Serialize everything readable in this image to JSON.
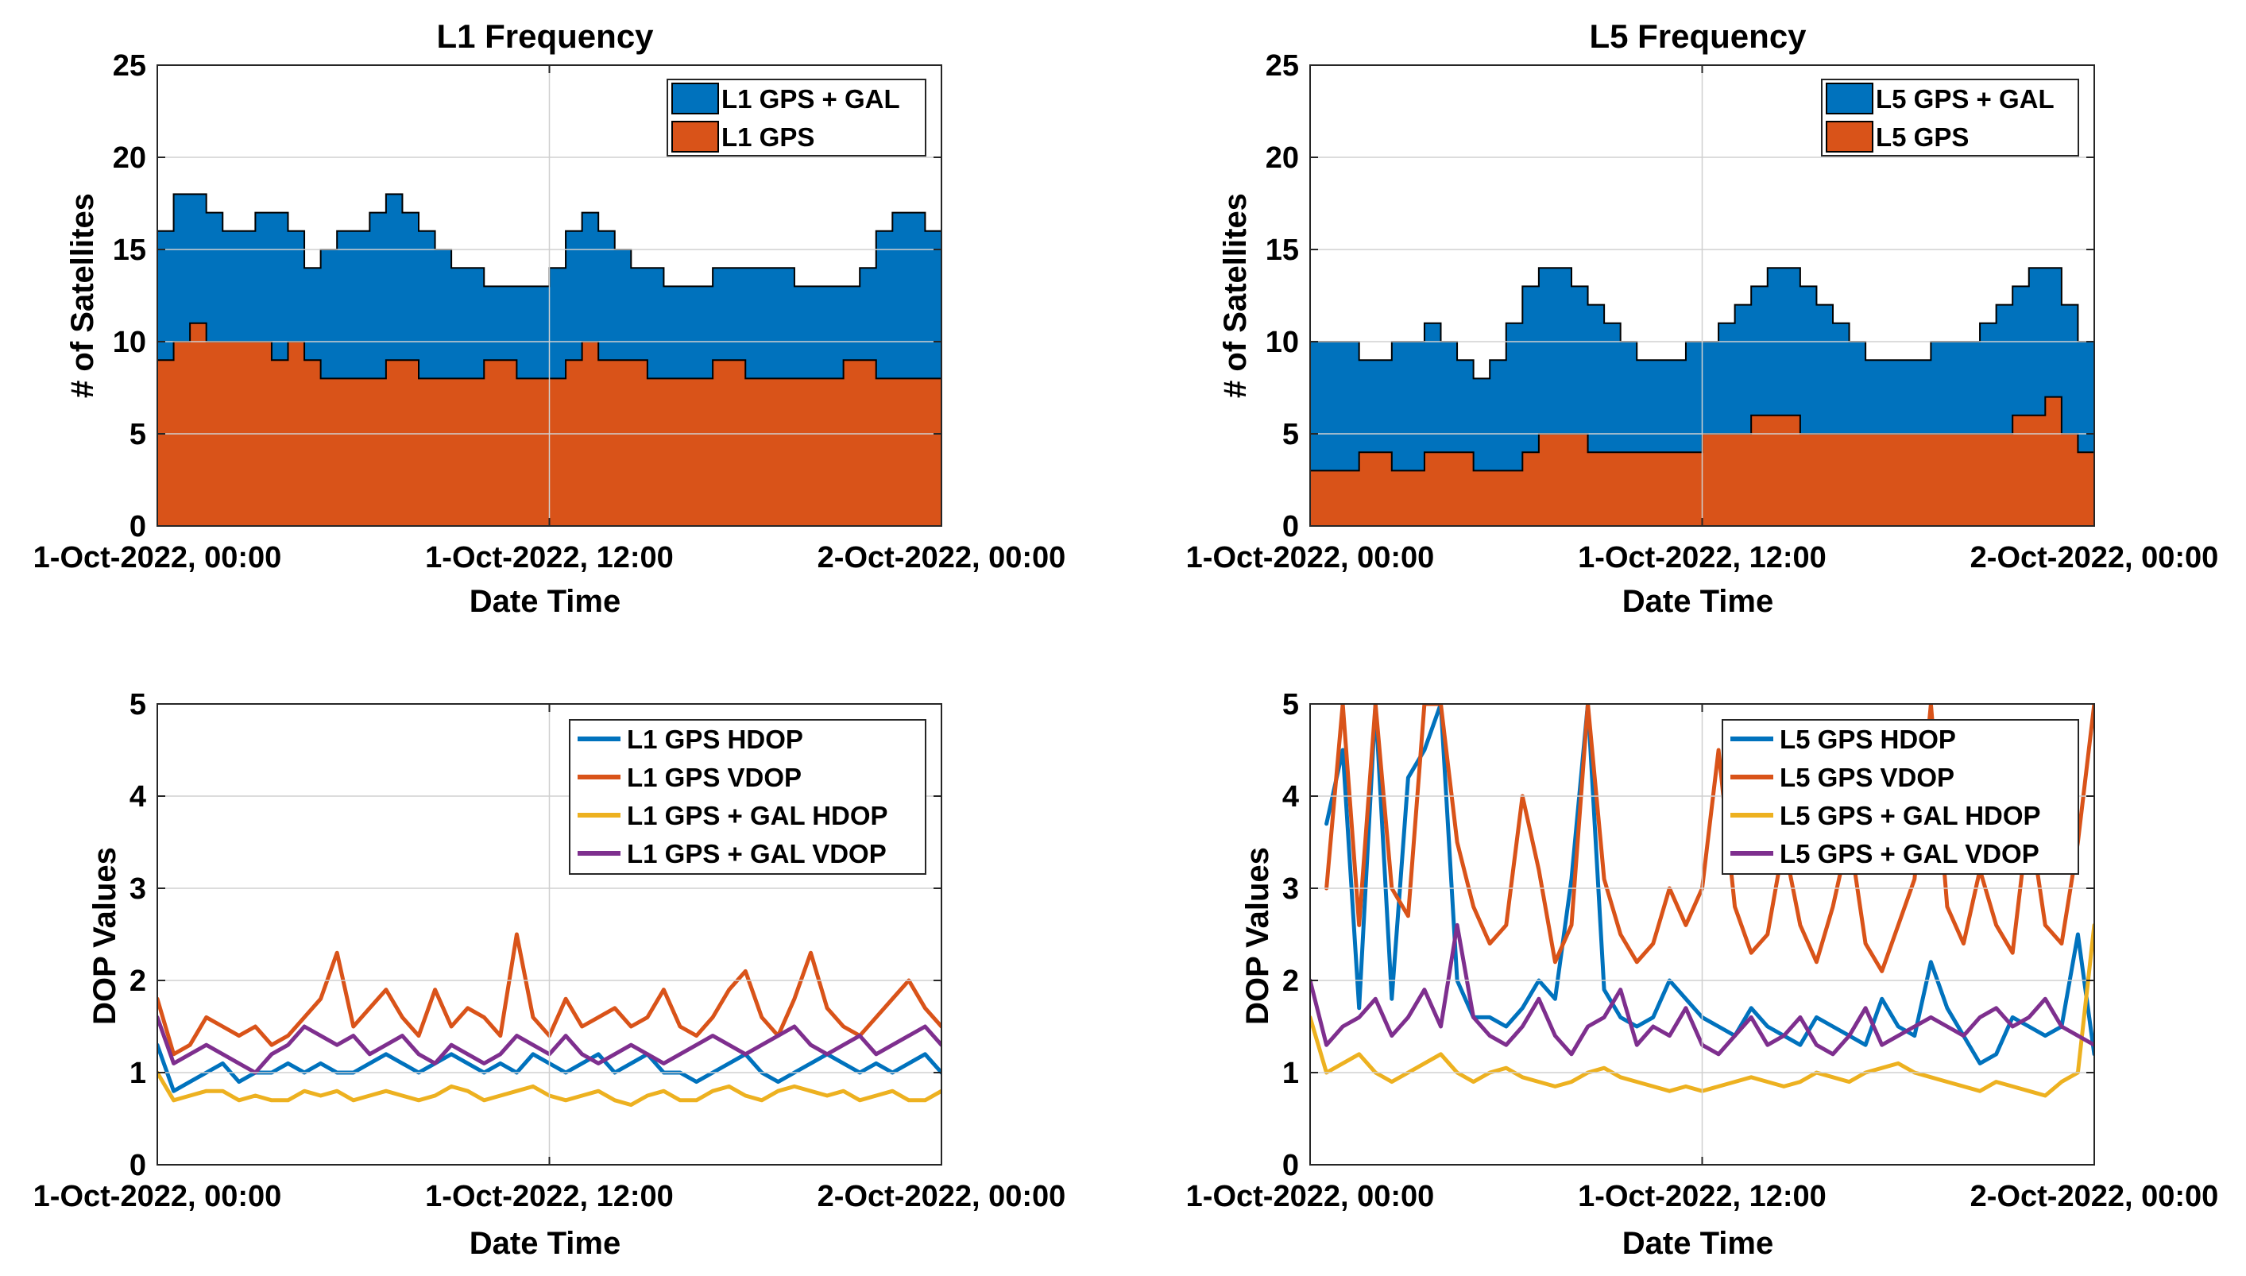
{
  "chart_data": [
    {
      "type": "area",
      "title": "L1 Frequency",
      "xlabel": "Date Time",
      "ylabel": "# of Satellites",
      "xlim": [
        0,
        24
      ],
      "ylim": [
        0,
        25
      ],
      "yticks": [
        0,
        5,
        10,
        15,
        20,
        25
      ],
      "xtick_labels": [
        "1-Oct-2022, 00:00",
        "1-Oct-2022, 12:00",
        "2-Oct-2022, 00:00"
      ],
      "grid": true,
      "legend_position": "top-right",
      "x": [
        0,
        0.5,
        1,
        1.5,
        2,
        2.5,
        3,
        3.5,
        4,
        4.5,
        5,
        5.5,
        6,
        6.5,
        7,
        7.5,
        8,
        8.5,
        9,
        9.5,
        10,
        10.5,
        11,
        11.5,
        12,
        12.5,
        13,
        13.5,
        14,
        14.5,
        15,
        15.5,
        16,
        16.5,
        17,
        17.5,
        18,
        18.5,
        19,
        19.5,
        20,
        20.5,
        21,
        21.5,
        22,
        22.5,
        23,
        23.5,
        24
      ],
      "series": [
        {
          "name": "L1 GPS + GAL",
          "color": "#0072BD",
          "values": [
            16,
            18,
            18,
            17,
            16,
            16,
            17,
            17,
            16,
            14,
            15,
            16,
            16,
            17,
            18,
            17,
            16,
            15,
            14,
            14,
            13,
            13,
            13,
            13,
            14,
            16,
            17,
            16,
            15,
            14,
            14,
            13,
            13,
            13,
            14,
            14,
            14,
            14,
            14,
            13,
            13,
            13,
            13,
            14,
            16,
            17,
            17,
            16,
            14
          ]
        },
        {
          "name": "L1 GPS",
          "color": "#D95319",
          "values": [
            9,
            10,
            11,
            10,
            10,
            10,
            10,
            9,
            10,
            9,
            8,
            8,
            8,
            8,
            9,
            9,
            8,
            8,
            8,
            8,
            9,
            9,
            8,
            8,
            8,
            9,
            10,
            9,
            9,
            9,
            8,
            8,
            8,
            8,
            9,
            9,
            8,
            8,
            8,
            8,
            8,
            8,
            9,
            9,
            8,
            8,
            8,
            8,
            8
          ]
        }
      ]
    },
    {
      "type": "area",
      "title": "L5 Frequency",
      "xlabel": "Date Time",
      "ylabel": "# of Satellites",
      "xlim": [
        0,
        24
      ],
      "ylim": [
        0,
        25
      ],
      "yticks": [
        0,
        5,
        10,
        15,
        20,
        25
      ],
      "xtick_labels": [
        "1-Oct-2022, 00:00",
        "1-Oct-2022, 12:00",
        "2-Oct-2022, 00:00"
      ],
      "grid": true,
      "legend_position": "top-right",
      "x": [
        0,
        0.5,
        1,
        1.5,
        2,
        2.5,
        3,
        3.5,
        4,
        4.5,
        5,
        5.5,
        6,
        6.5,
        7,
        7.5,
        8,
        8.5,
        9,
        9.5,
        10,
        10.5,
        11,
        11.5,
        12,
        12.5,
        13,
        13.5,
        14,
        14.5,
        15,
        15.5,
        16,
        16.5,
        17,
        17.5,
        18,
        18.5,
        19,
        19.5,
        20,
        20.5,
        21,
        21.5,
        22,
        22.5,
        23,
        23.5,
        24
      ],
      "series": [
        {
          "name": "L5 GPS + GAL",
          "color": "#0072BD",
          "values": [
            10,
            10,
            10,
            9,
            9,
            10,
            10,
            11,
            10,
            9,
            8,
            9,
            11,
            13,
            14,
            14,
            13,
            12,
            11,
            10,
            9,
            9,
            9,
            10,
            10,
            11,
            12,
            13,
            14,
            14,
            13,
            12,
            11,
            10,
            9,
            9,
            9,
            9,
            10,
            10,
            10,
            11,
            12,
            13,
            14,
            14,
            12,
            10,
            8
          ]
        },
        {
          "name": "L5 GPS",
          "color": "#D95319",
          "values": [
            3,
            3,
            3,
            4,
            4,
            3,
            3,
            4,
            4,
            4,
            3,
            3,
            3,
            4,
            5,
            5,
            5,
            4,
            4,
            4,
            4,
            4,
            4,
            4,
            5,
            5,
            5,
            6,
            6,
            6,
            5,
            5,
            5,
            5,
            5,
            5,
            5,
            5,
            5,
            5,
            5,
            5,
            5,
            6,
            6,
            7,
            5,
            4,
            4
          ]
        }
      ]
    },
    {
      "type": "line",
      "title": "",
      "xlabel": "Date Time",
      "ylabel": "DOP Values",
      "xlim": [
        0,
        24
      ],
      "ylim": [
        0,
        5
      ],
      "yticks": [
        0,
        1,
        2,
        3,
        4,
        5
      ],
      "xtick_labels": [
        "1-Oct-2022, 00:00",
        "1-Oct-2022, 12:00",
        "2-Oct-2022, 00:00"
      ],
      "grid": true,
      "legend_position": "top-right",
      "x": [
        0,
        0.5,
        1,
        1.5,
        2,
        2.5,
        3,
        3.5,
        4,
        4.5,
        5,
        5.5,
        6,
        6.5,
        7,
        7.5,
        8,
        8.5,
        9,
        9.5,
        10,
        10.5,
        11,
        11.5,
        12,
        12.5,
        13,
        13.5,
        14,
        14.5,
        15,
        15.5,
        16,
        16.5,
        17,
        17.5,
        18,
        18.5,
        19,
        19.5,
        20,
        20.5,
        21,
        21.5,
        22,
        22.5,
        23,
        23.5,
        24
      ],
      "series": [
        {
          "name": "L1 GPS HDOP",
          "color": "#0072BD",
          "values": [
            1.3,
            0.8,
            0.9,
            1.0,
            1.1,
            0.9,
            1.0,
            1.0,
            1.1,
            1.0,
            1.1,
            1.0,
            1.0,
            1.1,
            1.2,
            1.1,
            1.0,
            1.1,
            1.2,
            1.1,
            1.0,
            1.1,
            1.0,
            1.2,
            1.1,
            1.0,
            1.1,
            1.2,
            1.0,
            1.1,
            1.2,
            1.0,
            1.0,
            0.9,
            1.0,
            1.1,
            1.2,
            1.0,
            0.9,
            1.0,
            1.1,
            1.2,
            1.1,
            1.0,
            1.1,
            1.0,
            1.1,
            1.2,
            1.0
          ]
        },
        {
          "name": "L1 GPS VDOP",
          "color": "#D95319",
          "values": [
            1.8,
            1.2,
            1.3,
            1.6,
            1.5,
            1.4,
            1.5,
            1.3,
            1.4,
            1.6,
            1.8,
            2.3,
            1.5,
            1.7,
            1.9,
            1.6,
            1.4,
            1.9,
            1.5,
            1.7,
            1.6,
            1.4,
            2.5,
            1.6,
            1.4,
            1.8,
            1.5,
            1.6,
            1.7,
            1.5,
            1.6,
            1.9,
            1.5,
            1.4,
            1.6,
            1.9,
            2.1,
            1.6,
            1.4,
            1.8,
            2.3,
            1.7,
            1.5,
            1.4,
            1.6,
            1.8,
            2.0,
            1.7,
            1.5
          ]
        },
        {
          "name": "L1 GPS + GAL HDOP",
          "color": "#EDB120",
          "values": [
            1.0,
            0.7,
            0.75,
            0.8,
            0.8,
            0.7,
            0.75,
            0.7,
            0.7,
            0.8,
            0.75,
            0.8,
            0.7,
            0.75,
            0.8,
            0.75,
            0.7,
            0.75,
            0.85,
            0.8,
            0.7,
            0.75,
            0.8,
            0.85,
            0.75,
            0.7,
            0.75,
            0.8,
            0.7,
            0.65,
            0.75,
            0.8,
            0.7,
            0.7,
            0.8,
            0.85,
            0.75,
            0.7,
            0.8,
            0.85,
            0.8,
            0.75,
            0.8,
            0.7,
            0.75,
            0.8,
            0.7,
            0.7,
            0.8
          ]
        },
        {
          "name": "L1 GPS + GAL VDOP",
          "color": "#7E2F8E",
          "values": [
            1.6,
            1.1,
            1.2,
            1.3,
            1.2,
            1.1,
            1.0,
            1.2,
            1.3,
            1.5,
            1.4,
            1.3,
            1.4,
            1.2,
            1.3,
            1.4,
            1.2,
            1.1,
            1.3,
            1.2,
            1.1,
            1.2,
            1.4,
            1.3,
            1.2,
            1.4,
            1.2,
            1.1,
            1.2,
            1.3,
            1.2,
            1.1,
            1.2,
            1.3,
            1.4,
            1.3,
            1.2,
            1.3,
            1.4,
            1.5,
            1.3,
            1.2,
            1.3,
            1.4,
            1.2,
            1.3,
            1.4,
            1.5,
            1.3
          ]
        }
      ]
    },
    {
      "type": "line",
      "title": "",
      "xlabel": "Date Time",
      "ylabel": "DOP Values",
      "xlim": [
        0,
        24
      ],
      "ylim": [
        0,
        5
      ],
      "yticks": [
        0,
        1,
        2,
        3,
        4,
        5
      ],
      "xtick_labels": [
        "1-Oct-2022, 00:00",
        "1-Oct-2022, 12:00",
        "2-Oct-2022, 00:00"
      ],
      "grid": true,
      "legend_position": "top-right",
      "x": [
        0,
        0.5,
        1,
        1.5,
        2,
        2.5,
        3,
        3.5,
        4,
        4.5,
        5,
        5.5,
        6,
        6.5,
        7,
        7.5,
        8,
        8.5,
        9,
        9.5,
        10,
        10.5,
        11,
        11.5,
        12,
        12.5,
        13,
        13.5,
        14,
        14.5,
        15,
        15.5,
        16,
        16.5,
        17,
        17.5,
        18,
        18.5,
        19,
        19.5,
        20,
        20.5,
        21,
        21.5,
        22,
        22.5,
        23,
        23.5,
        24
      ],
      "series": [
        {
          "name": "L5 GPS HDOP",
          "color": "#0072BD",
          "values": [
            null,
            3.7,
            4.5,
            1.7,
            5.0,
            1.8,
            4.2,
            4.5,
            5.0,
            2.0,
            1.6,
            1.6,
            1.5,
            1.7,
            2.0,
            1.8,
            3.1,
            5.0,
            1.9,
            1.6,
            1.5,
            1.6,
            2.0,
            1.8,
            1.6,
            1.5,
            1.4,
            1.7,
            1.5,
            1.4,
            1.3,
            1.6,
            1.5,
            1.4,
            1.3,
            1.8,
            1.5,
            1.4,
            2.2,
            1.7,
            1.4,
            1.1,
            1.2,
            1.6,
            1.5,
            1.4,
            1.5,
            2.5,
            1.2
          ]
        },
        {
          "name": "L5 GPS VDOP",
          "color": "#D95319",
          "values": [
            null,
            3.0,
            5.0,
            2.6,
            5.0,
            3.0,
            2.7,
            5.0,
            5.0,
            3.5,
            2.8,
            2.4,
            2.6,
            4.0,
            3.2,
            2.2,
            2.6,
            5.0,
            3.1,
            2.5,
            2.2,
            2.4,
            3.0,
            2.6,
            3.0,
            4.5,
            2.8,
            2.3,
            2.5,
            3.5,
            2.6,
            2.2,
            2.8,
            3.6,
            2.4,
            2.1,
            2.6,
            3.1,
            5.0,
            2.8,
            2.4,
            3.2,
            2.6,
            2.3,
            3.8,
            2.6,
            2.4,
            3.5,
            5.0
          ]
        },
        {
          "name": "L5 GPS + GAL HDOP",
          "color": "#EDB120",
          "values": [
            1.6,
            1.0,
            1.1,
            1.2,
            1.0,
            0.9,
            1.0,
            1.1,
            1.2,
            1.0,
            0.9,
            1.0,
            1.05,
            0.95,
            0.9,
            0.85,
            0.9,
            1.0,
            1.05,
            0.95,
            0.9,
            0.85,
            0.8,
            0.85,
            0.8,
            0.85,
            0.9,
            0.95,
            0.9,
            0.85,
            0.9,
            1.0,
            0.95,
            0.9,
            1.0,
            1.05,
            1.1,
            1.0,
            0.95,
            0.9,
            0.85,
            0.8,
            0.9,
            0.85,
            0.8,
            0.75,
            0.9,
            1.0,
            2.6
          ]
        },
        {
          "name": "L5 GPS + GAL VDOP",
          "color": "#7E2F8E",
          "values": [
            2.0,
            1.3,
            1.5,
            1.6,
            1.8,
            1.4,
            1.6,
            1.9,
            1.5,
            2.6,
            1.6,
            1.4,
            1.3,
            1.5,
            1.8,
            1.4,
            1.2,
            1.5,
            1.6,
            1.9,
            1.3,
            1.5,
            1.4,
            1.7,
            1.3,
            1.2,
            1.4,
            1.6,
            1.3,
            1.4,
            1.6,
            1.3,
            1.2,
            1.4,
            1.7,
            1.3,
            1.4,
            1.5,
            1.6,
            1.5,
            1.4,
            1.6,
            1.7,
            1.5,
            1.6,
            1.8,
            1.5,
            1.4,
            1.3
          ]
        }
      ]
    }
  ]
}
